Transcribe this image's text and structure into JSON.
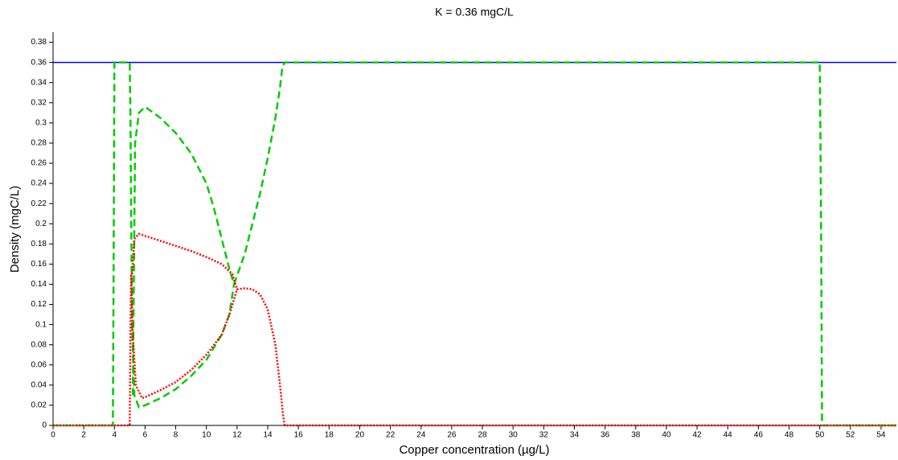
{
  "chart_data": {
    "type": "line",
    "title": "K = 0.36 mgC/L",
    "x_label": "Copper concentration (µg/L)",
    "y_label": "Density (mgC/L)",
    "xlim": [
      0,
      55
    ],
    "ylim": [
      0,
      0.39
    ],
    "xticks": [
      0,
      2,
      4,
      6,
      8,
      10,
      12,
      14,
      16,
      18,
      20,
      22,
      24,
      26,
      28,
      30,
      32,
      34,
      36,
      38,
      40,
      42,
      44,
      46,
      48,
      50,
      52,
      54
    ],
    "yticks": [
      0,
      0.02,
      0.04,
      0.06,
      0.08,
      0.1,
      0.12,
      0.14,
      0.16,
      0.18,
      0.2,
      0.22,
      0.24,
      0.26,
      0.28,
      0.3,
      0.32,
      0.34,
      0.36,
      0.38
    ],
    "series": [
      {
        "color": "#0000ff",
        "dash": "solid",
        "x": [
          0,
          55
        ],
        "values": [
          0.36,
          0.36
        ]
      },
      {
        "color": "#00cc00",
        "dash": "dashed",
        "x": [
          0,
          3.9,
          3.95,
          4.0,
          5.0,
          5.05,
          5.15,
          5.3,
          5.6,
          6,
          7,
          8,
          9,
          10,
          11,
          11.5,
          11.8
        ],
        "values": [
          0,
          0,
          0.16,
          0.36,
          0.36,
          0.3,
          0.1,
          0.03,
          0.018,
          0.02,
          0.027,
          0.036,
          0.049,
          0.065,
          0.09,
          0.11,
          0.14
        ]
      },
      {
        "color": "#00cc00",
        "dash": "dashed",
        "x": [
          5.2,
          5.35,
          5.6,
          6,
          7,
          8,
          9,
          10,
          10.5,
          11,
          11.5,
          11.8
        ],
        "values": [
          0.03,
          0.28,
          0.31,
          0.316,
          0.305,
          0.29,
          0.27,
          0.24,
          0.215,
          0.185,
          0.155,
          0.14
        ]
      },
      {
        "color": "#00cc00",
        "dash": "dashed",
        "x": [
          11.8,
          12.5,
          13,
          13.5,
          14,
          14.5,
          14.8,
          14.95,
          15.1,
          50,
          50.05,
          50.1,
          50.15,
          55
        ],
        "values": [
          0.14,
          0.17,
          0.2,
          0.23,
          0.265,
          0.305,
          0.335,
          0.355,
          0.36,
          0.36,
          0.28,
          0.17,
          0,
          0
        ]
      },
      {
        "color": "#ff0000",
        "dash": "dotted",
        "x": [
          0,
          5.0,
          5.05,
          5.1,
          5.2,
          5.4,
          5.8,
          6,
          7,
          8,
          9,
          10,
          11,
          11.5,
          12
        ],
        "values": [
          0,
          0,
          0.1,
          0.15,
          0.09,
          0.04,
          0.027,
          0.028,
          0.035,
          0.043,
          0.055,
          0.07,
          0.09,
          0.11,
          0.135
        ]
      },
      {
        "color": "#ff0000",
        "dash": "dotted",
        "x": [
          5.15,
          5.3,
          5.6,
          6,
          7,
          8,
          9,
          10,
          11,
          11.7,
          12,
          12.5,
          13,
          13.5,
          14,
          14.5,
          14.8,
          15,
          15.1,
          55
        ],
        "values": [
          0.15,
          0.185,
          0.19,
          0.188,
          0.183,
          0.178,
          0.173,
          0.167,
          0.16,
          0.15,
          0.135,
          0.136,
          0.135,
          0.13,
          0.115,
          0.08,
          0.04,
          0.01,
          0,
          0
        ]
      }
    ]
  }
}
